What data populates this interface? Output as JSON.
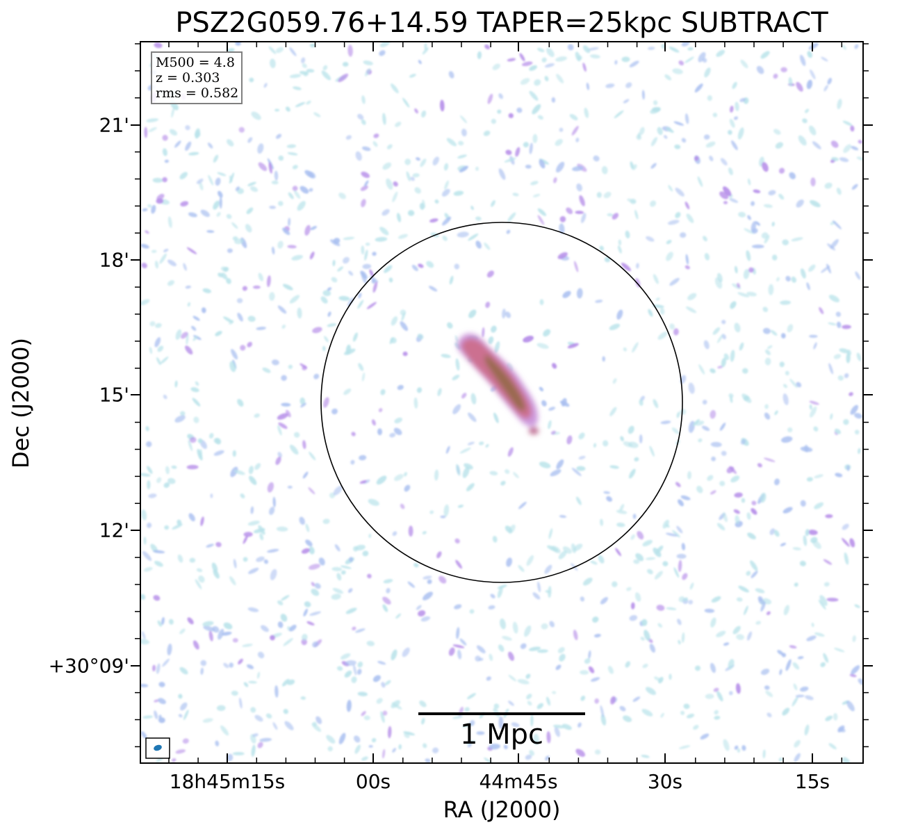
{
  "title": "PSZ2G059.76+14.59 TAPER=25kpc SUBTRACT",
  "axes": {
    "xlabel": "RA (J2000)",
    "ylabel": "Dec (J2000)",
    "x_ticks": [
      "18h45m15s",
      "00s",
      "44m45s",
      "30s",
      "15s"
    ],
    "y_ticks": [
      "21'",
      "18'",
      "15'",
      "12'",
      "+30°09'"
    ]
  },
  "info": {
    "m500": "M500 = 4.8",
    "z": "z = 0.303",
    "rms": "rms = 0.582"
  },
  "scalebar": {
    "label": "1 Mpc"
  },
  "colors": {
    "noise_light": "#b9e3ea",
    "noise_mid": "#a9bff0",
    "noise_strong": "#b48be8",
    "source_pink": "#cc6f8c",
    "source_core": "#8a6a3a",
    "beam": "#1f77b4"
  }
}
